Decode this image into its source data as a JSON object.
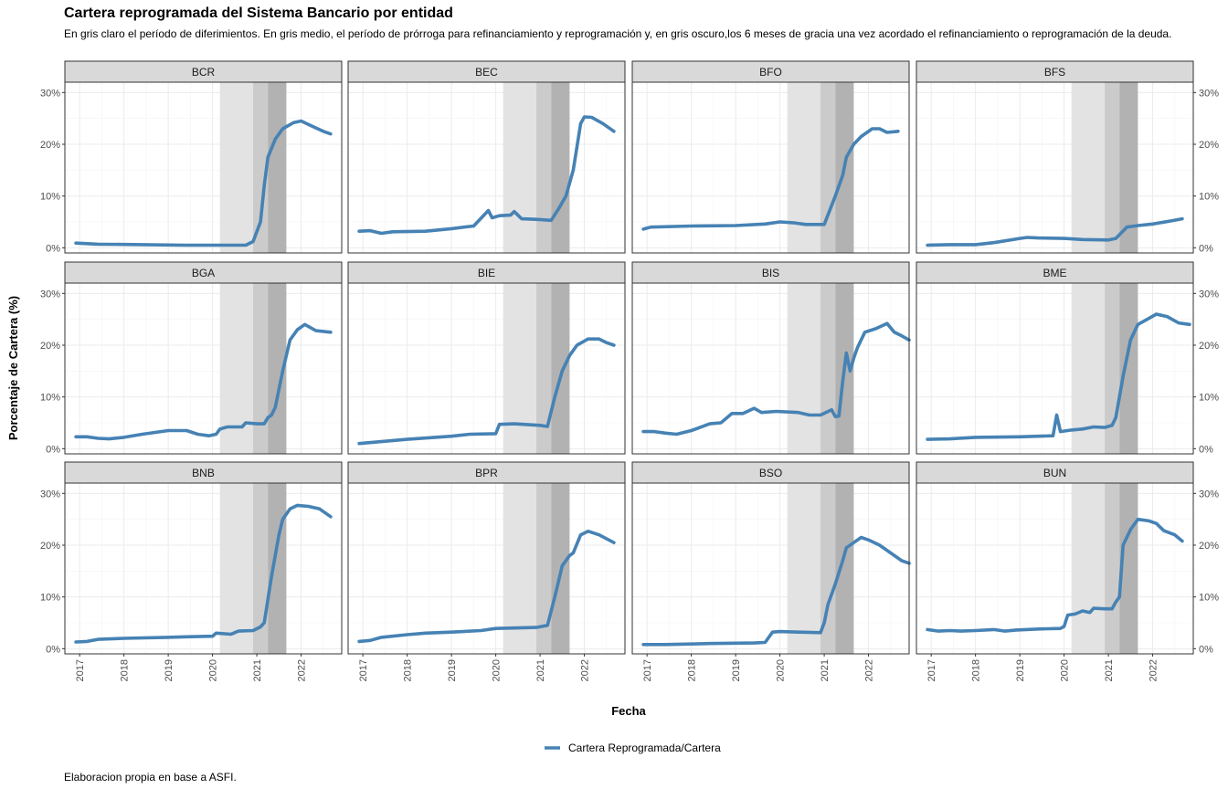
{
  "title": "Cartera reprogramada del Sistema Bancario por entidad",
  "subtitle": "En gris claro el período de diferimientos. En gris medio, el período de prórroga para refinanciamiento y reprogramación y, en gris oscuro,los 6 meses de gracia una vez acordado el refinanciamiento o reprogramación de la deuda.",
  "caption": "Elaboracion propia en base a ASFI.",
  "colors": {
    "line": "#4682B4",
    "panel_strip": "#D9D9D9",
    "grid": "#EBEBEB",
    "shade_light": "#E3E3E3",
    "shade_medium": "#CBCBCB",
    "shade_dark": "#B2B2B2"
  },
  "chart_data": {
    "type": "line",
    "facet": "entidad",
    "xlabel": "Fecha",
    "ylabel": "Porcentaje de Cartera (%)",
    "x_ticks": [
      "2017",
      "2018",
      "2019",
      "2020",
      "2021",
      "2022"
    ],
    "y_ticks": [
      "0%",
      "10%",
      "20%",
      "30%"
    ],
    "xlim": [
      "2016-09",
      "2022-12"
    ],
    "ylim": [
      -1,
      32
    ],
    "grid": true,
    "legend": {
      "position": "bottom",
      "entries": [
        "Cartera Reprogramada/Cartera"
      ]
    },
    "shaded_periods": [
      {
        "tone": "light",
        "start": "2020-03",
        "end": "2020-12"
      },
      {
        "tone": "medium",
        "start": "2020-12",
        "end": "2021-04"
      },
      {
        "tone": "dark",
        "start": "2021-04",
        "end": "2021-09"
      }
    ],
    "series_name": "Cartera Reprogramada/Cartera",
    "panels": [
      {
        "name": "BCR",
        "points": [
          [
            "2016-12",
            0.9
          ],
          [
            "2017-06",
            0.7
          ],
          [
            "2018-06",
            0.6
          ],
          [
            "2019-06",
            0.5
          ],
          [
            "2020-06",
            0.5
          ],
          [
            "2020-10",
            0.5
          ],
          [
            "2020-12",
            1.2
          ],
          [
            "2021-02",
            5
          ],
          [
            "2021-03",
            12
          ],
          [
            "2021-04",
            17.5
          ],
          [
            "2021-06",
            21
          ],
          [
            "2021-08",
            23
          ],
          [
            "2021-11",
            24.2
          ],
          [
            "2022-01",
            24.5
          ],
          [
            "2022-04",
            23.5
          ],
          [
            "2022-07",
            22.5
          ],
          [
            "2022-09",
            22
          ]
        ]
      },
      {
        "name": "BEC",
        "points": [
          [
            "2016-12",
            3.2
          ],
          [
            "2017-03",
            3.3
          ],
          [
            "2017-06",
            2.8
          ],
          [
            "2017-09",
            3.1
          ],
          [
            "2018-06",
            3.2
          ],
          [
            "2019-01",
            3.7
          ],
          [
            "2019-07",
            4.2
          ],
          [
            "2019-11",
            7.2
          ],
          [
            "2019-12",
            5.8
          ],
          [
            "2020-02",
            6.2
          ],
          [
            "2020-05",
            6.3
          ],
          [
            "2020-06",
            7
          ],
          [
            "2020-08",
            5.6
          ],
          [
            "2020-12",
            5.5
          ],
          [
            "2021-04",
            5.3
          ],
          [
            "2021-06",
            7.5
          ],
          [
            "2021-08",
            10
          ],
          [
            "2021-10",
            15
          ],
          [
            "2021-12",
            24
          ],
          [
            "2022-01",
            25.3
          ],
          [
            "2022-03",
            25.2
          ],
          [
            "2022-06",
            24
          ],
          [
            "2022-09",
            22.5
          ]
        ]
      },
      {
        "name": "BFO",
        "points": [
          [
            "2016-12",
            3.6
          ],
          [
            "2017-02",
            4
          ],
          [
            "2018-01",
            4.2
          ],
          [
            "2019-01",
            4.3
          ],
          [
            "2019-09",
            4.6
          ],
          [
            "2020-01",
            5
          ],
          [
            "2020-05",
            4.8
          ],
          [
            "2020-08",
            4.5
          ],
          [
            "2021-01",
            4.5
          ],
          [
            "2021-04",
            10
          ],
          [
            "2021-06",
            14
          ],
          [
            "2021-07",
            17.5
          ],
          [
            "2021-09",
            20
          ],
          [
            "2021-11",
            21.5
          ],
          [
            "2022-02",
            23
          ],
          [
            "2022-04",
            23
          ],
          [
            "2022-06",
            22.3
          ],
          [
            "2022-09",
            22.5
          ]
        ]
      },
      {
        "name": "BFS",
        "points": [
          [
            "2016-12",
            0.5
          ],
          [
            "2017-06",
            0.6
          ],
          [
            "2018-01",
            0.6
          ],
          [
            "2018-06",
            1
          ],
          [
            "2019-01",
            1.8
          ],
          [
            "2019-03",
            2
          ],
          [
            "2019-06",
            1.9
          ],
          [
            "2020-01",
            1.8
          ],
          [
            "2020-06",
            1.6
          ],
          [
            "2021-01",
            1.5
          ],
          [
            "2021-03",
            1.8
          ],
          [
            "2021-06",
            4
          ],
          [
            "2021-09",
            4.3
          ],
          [
            "2022-01",
            4.6
          ],
          [
            "2022-06",
            5.2
          ],
          [
            "2022-09",
            5.6
          ]
        ]
      },
      {
        "name": "BGA",
        "points": [
          [
            "2016-12",
            2.3
          ],
          [
            "2017-03",
            2.3
          ],
          [
            "2017-06",
            2
          ],
          [
            "2017-09",
            1.9
          ],
          [
            "2018-01",
            2.2
          ],
          [
            "2018-06",
            2.8
          ],
          [
            "2019-01",
            3.5
          ],
          [
            "2019-06",
            3.5
          ],
          [
            "2019-09",
            2.8
          ],
          [
            "2019-12",
            2.5
          ],
          [
            "2020-02",
            2.8
          ],
          [
            "2020-03",
            3.8
          ],
          [
            "2020-05",
            4.2
          ],
          [
            "2020-09",
            4.2
          ],
          [
            "2020-10",
            5
          ],
          [
            "2021-01",
            4.8
          ],
          [
            "2021-03",
            4.8
          ],
          [
            "2021-04",
            6
          ],
          [
            "2021-05",
            6.5
          ],
          [
            "2021-06",
            8
          ],
          [
            "2021-08",
            15
          ],
          [
            "2021-10",
            21
          ],
          [
            "2021-12",
            23
          ],
          [
            "2022-02",
            24
          ],
          [
            "2022-05",
            22.8
          ],
          [
            "2022-09",
            22.5
          ]
        ]
      },
      {
        "name": "BIE",
        "points": [
          [
            "2016-12",
            1
          ],
          [
            "2018-01",
            1.8
          ],
          [
            "2019-01",
            2.4
          ],
          [
            "2019-06",
            2.8
          ],
          [
            "2020-01",
            2.9
          ],
          [
            "2020-02",
            4.7
          ],
          [
            "2020-06",
            4.8
          ],
          [
            "2021-01",
            4.5
          ],
          [
            "2021-03",
            4.3
          ],
          [
            "2021-05",
            10
          ],
          [
            "2021-07",
            15
          ],
          [
            "2021-09",
            18
          ],
          [
            "2021-11",
            20
          ],
          [
            "2022-02",
            21.2
          ],
          [
            "2022-05",
            21.2
          ],
          [
            "2022-07",
            20.5
          ],
          [
            "2022-09",
            20
          ]
        ]
      },
      {
        "name": "BIS",
        "points": [
          [
            "2016-12",
            3.3
          ],
          [
            "2017-03",
            3.3
          ],
          [
            "2017-06",
            3
          ],
          [
            "2017-09",
            2.8
          ],
          [
            "2018-01",
            3.5
          ],
          [
            "2018-06",
            4.8
          ],
          [
            "2018-09",
            5
          ],
          [
            "2018-12",
            6.8
          ],
          [
            "2019-03",
            6.8
          ],
          [
            "2019-06",
            7.8
          ],
          [
            "2019-08",
            7
          ],
          [
            "2019-12",
            7.2
          ],
          [
            "2020-06",
            7
          ],
          [
            "2020-09",
            6.5
          ],
          [
            "2020-12",
            6.5
          ],
          [
            "2021-03",
            7.5
          ],
          [
            "2021-04",
            6.2
          ],
          [
            "2021-05",
            6.3
          ],
          [
            "2021-06",
            13
          ],
          [
            "2021-07",
            18.5
          ],
          [
            "2021-08",
            15
          ],
          [
            "2021-09",
            17.5
          ],
          [
            "2021-10",
            19.5
          ],
          [
            "2021-12",
            22.5
          ],
          [
            "2022-03",
            23.2
          ],
          [
            "2022-06",
            24.2
          ],
          [
            "2022-08",
            22.5
          ],
          [
            "2022-10",
            21.8
          ],
          [
            "2022-12",
            21
          ]
        ]
      },
      {
        "name": "BME",
        "points": [
          [
            "2016-12",
            1.8
          ],
          [
            "2017-06",
            1.9
          ],
          [
            "2018-01",
            2.2
          ],
          [
            "2019-01",
            2.3
          ],
          [
            "2019-06",
            2.4
          ],
          [
            "2019-10",
            2.5
          ],
          [
            "2019-11",
            6.5
          ],
          [
            "2019-12",
            3.3
          ],
          [
            "2020-03",
            3.6
          ],
          [
            "2020-06",
            3.8
          ],
          [
            "2020-09",
            4.2
          ],
          [
            "2020-12",
            4.1
          ],
          [
            "2021-02",
            4.5
          ],
          [
            "2021-03",
            6
          ],
          [
            "2021-05",
            14
          ],
          [
            "2021-07",
            21
          ],
          [
            "2021-09",
            24
          ],
          [
            "2021-11",
            24.8
          ],
          [
            "2022-02",
            26
          ],
          [
            "2022-05",
            25.5
          ],
          [
            "2022-08",
            24.3
          ],
          [
            "2022-11",
            24
          ]
        ]
      },
      {
        "name": "BNB",
        "points": [
          [
            "2016-12",
            1.3
          ],
          [
            "2017-03",
            1.4
          ],
          [
            "2017-06",
            1.8
          ],
          [
            "2018-01",
            2
          ],
          [
            "2019-01",
            2.2
          ],
          [
            "2019-06",
            2.3
          ],
          [
            "2020-01",
            2.4
          ],
          [
            "2020-02",
            3
          ],
          [
            "2020-06",
            2.8
          ],
          [
            "2020-08",
            3.4
          ],
          [
            "2020-12",
            3.5
          ],
          [
            "2021-02",
            4.2
          ],
          [
            "2021-03",
            5
          ],
          [
            "2021-05",
            14
          ],
          [
            "2021-07",
            22
          ],
          [
            "2021-08",
            25
          ],
          [
            "2021-10",
            27
          ],
          [
            "2021-12",
            27.7
          ],
          [
            "2022-03",
            27.5
          ],
          [
            "2022-06",
            27
          ],
          [
            "2022-09",
            25.5
          ]
        ]
      },
      {
        "name": "BPR",
        "points": [
          [
            "2016-12",
            1.4
          ],
          [
            "2017-03",
            1.6
          ],
          [
            "2017-06",
            2.2
          ],
          [
            "2018-01",
            2.7
          ],
          [
            "2018-06",
            3
          ],
          [
            "2019-01",
            3.2
          ],
          [
            "2019-09",
            3.5
          ],
          [
            "2020-01",
            3.9
          ],
          [
            "2020-06",
            4
          ],
          [
            "2020-12",
            4.1
          ],
          [
            "2021-03",
            4.5
          ],
          [
            "2021-05",
            10
          ],
          [
            "2021-07",
            16
          ],
          [
            "2021-09",
            18
          ],
          [
            "2021-10",
            18.5
          ],
          [
            "2021-12",
            22
          ],
          [
            "2022-02",
            22.7
          ],
          [
            "2022-05",
            22
          ],
          [
            "2022-09",
            20.5
          ]
        ]
      },
      {
        "name": "BSO",
        "points": [
          [
            "2016-12",
            0.8
          ],
          [
            "2017-06",
            0.8
          ],
          [
            "2018-01",
            0.9
          ],
          [
            "2018-06",
            1
          ],
          [
            "2019-06",
            1.1
          ],
          [
            "2019-09",
            1.2
          ],
          [
            "2019-11",
            3.2
          ],
          [
            "2020-01",
            3.3
          ],
          [
            "2020-06",
            3.2
          ],
          [
            "2020-12",
            3.1
          ],
          [
            "2021-01",
            5
          ],
          [
            "2021-02",
            8.5
          ],
          [
            "2021-04",
            12.5
          ],
          [
            "2021-06",
            17
          ],
          [
            "2021-07",
            19.5
          ],
          [
            "2021-09",
            20.5
          ],
          [
            "2021-11",
            21.5
          ],
          [
            "2022-01",
            21
          ],
          [
            "2022-04",
            20
          ],
          [
            "2022-07",
            18.5
          ],
          [
            "2022-10",
            17
          ],
          [
            "2022-12",
            16.5
          ]
        ]
      },
      {
        "name": "BUN",
        "points": [
          [
            "2016-12",
            3.7
          ],
          [
            "2017-03",
            3.4
          ],
          [
            "2017-06",
            3.5
          ],
          [
            "2017-09",
            3.4
          ],
          [
            "2018-01",
            3.5
          ],
          [
            "2018-06",
            3.7
          ],
          [
            "2018-09",
            3.4
          ],
          [
            "2018-12",
            3.6
          ],
          [
            "2019-06",
            3.8
          ],
          [
            "2019-12",
            3.9
          ],
          [
            "2020-01",
            4.3
          ],
          [
            "2020-02",
            6.5
          ],
          [
            "2020-04",
            6.7
          ],
          [
            "2020-06",
            7.3
          ],
          [
            "2020-08",
            7
          ],
          [
            "2020-09",
            7.8
          ],
          [
            "2020-12",
            7.7
          ],
          [
            "2021-02",
            7.7
          ],
          [
            "2021-03",
            9
          ],
          [
            "2021-04",
            10
          ],
          [
            "2021-05",
            20
          ],
          [
            "2021-07",
            23
          ],
          [
            "2021-09",
            25
          ],
          [
            "2021-12",
            24.7
          ],
          [
            "2022-02",
            24.2
          ],
          [
            "2022-04",
            22.8
          ],
          [
            "2022-07",
            22
          ],
          [
            "2022-09",
            20.8
          ]
        ]
      }
    ]
  }
}
